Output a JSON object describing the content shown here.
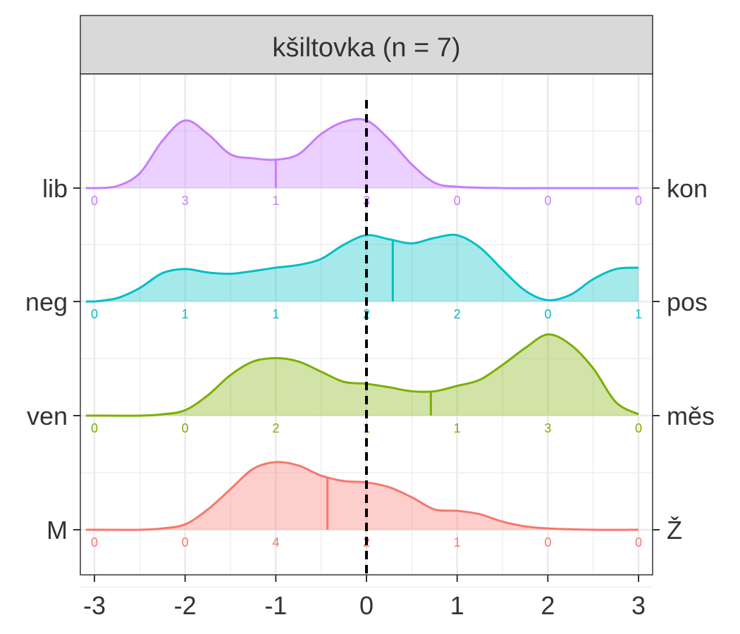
{
  "chart_data": {
    "type": "ridgeline-density",
    "facet_title": "kšiltovka (n = 7)",
    "xlim": [
      -3,
      3
    ],
    "x_ticks": [
      -3,
      -2,
      -1,
      0,
      1,
      2,
      3
    ],
    "x_tick_labels": [
      "-3",
      "-2",
      "-1",
      "0",
      "1",
      "2",
      "3"
    ],
    "reference_line_x": 0,
    "grid": true,
    "series": [
      {
        "left_label": "lib",
        "right_label": "kon",
        "color": "#C77CFF",
        "counts": [
          0,
          3,
          1,
          3,
          0,
          0,
          0
        ],
        "mean": -1.0,
        "density_points": [
          [
            -3,
            0
          ],
          [
            -2.75,
            0.03
          ],
          [
            -2.5,
            0.22
          ],
          [
            -2.25,
            0.7
          ],
          [
            -2,
            1.0
          ],
          [
            -1.75,
            0.8
          ],
          [
            -1.5,
            0.5
          ],
          [
            -1.25,
            0.44
          ],
          [
            -1,
            0.42
          ],
          [
            -0.75,
            0.5
          ],
          [
            -0.5,
            0.8
          ],
          [
            -0.25,
            0.98
          ],
          [
            0,
            1.0
          ],
          [
            0.25,
            0.72
          ],
          [
            0.5,
            0.35
          ],
          [
            0.75,
            0.08
          ],
          [
            1,
            0.02
          ],
          [
            1.5,
            0
          ],
          [
            2,
            0
          ],
          [
            2.5,
            0
          ],
          [
            3,
            0
          ]
        ]
      },
      {
        "left_label": "neg",
        "right_label": "pos",
        "color": "#00BFC4",
        "counts": [
          0,
          1,
          1,
          2,
          2,
          0,
          1
        ],
        "mean": 0.29,
        "density_points": [
          [
            -3,
            0
          ],
          [
            -2.75,
            0.05
          ],
          [
            -2.5,
            0.2
          ],
          [
            -2.25,
            0.42
          ],
          [
            -2,
            0.48
          ],
          [
            -1.75,
            0.43
          ],
          [
            -1.5,
            0.41
          ],
          [
            -1.25,
            0.45
          ],
          [
            -1,
            0.5
          ],
          [
            -0.75,
            0.54
          ],
          [
            -0.5,
            0.63
          ],
          [
            -0.25,
            0.84
          ],
          [
            0,
            0.98
          ],
          [
            0.25,
            0.92
          ],
          [
            0.5,
            0.86
          ],
          [
            0.75,
            0.94
          ],
          [
            1,
            0.98
          ],
          [
            1.25,
            0.8
          ],
          [
            1.5,
            0.47
          ],
          [
            1.75,
            0.16
          ],
          [
            2,
            0.02
          ],
          [
            2.25,
            0.1
          ],
          [
            2.5,
            0.33
          ],
          [
            2.75,
            0.48
          ],
          [
            3,
            0.5
          ]
        ]
      },
      {
        "left_label": "ven",
        "right_label": "měs",
        "color": "#7CAE00",
        "counts": [
          0,
          0,
          2,
          1,
          1,
          3,
          0
        ],
        "mean": 0.71,
        "density_points": [
          [
            -3,
            0
          ],
          [
            -2.5,
            0
          ],
          [
            -2.25,
            0.02
          ],
          [
            -2,
            0.08
          ],
          [
            -1.75,
            0.3
          ],
          [
            -1.5,
            0.6
          ],
          [
            -1.25,
            0.8
          ],
          [
            -1,
            0.85
          ],
          [
            -0.75,
            0.8
          ],
          [
            -0.5,
            0.65
          ],
          [
            -0.25,
            0.5
          ],
          [
            0,
            0.47
          ],
          [
            0.25,
            0.42
          ],
          [
            0.5,
            0.36
          ],
          [
            0.75,
            0.36
          ],
          [
            1,
            0.44
          ],
          [
            1.25,
            0.53
          ],
          [
            1.5,
            0.75
          ],
          [
            1.75,
            1.0
          ],
          [
            2,
            1.2
          ],
          [
            2.25,
            1.05
          ],
          [
            2.5,
            0.7
          ],
          [
            2.75,
            0.2
          ],
          [
            3,
            0.02
          ]
        ]
      },
      {
        "left_label": "M",
        "right_label": "Ž",
        "color": "#F8766D",
        "counts": [
          0,
          0,
          4,
          2,
          1,
          0,
          0
        ],
        "mean": -0.43,
        "density_points": [
          [
            -3,
            0
          ],
          [
            -2.5,
            0
          ],
          [
            -2.25,
            0.02
          ],
          [
            -2,
            0.08
          ],
          [
            -1.75,
            0.3
          ],
          [
            -1.5,
            0.6
          ],
          [
            -1.25,
            0.9
          ],
          [
            -1,
            1.0
          ],
          [
            -0.75,
            0.95
          ],
          [
            -0.5,
            0.8
          ],
          [
            -0.25,
            0.72
          ],
          [
            0,
            0.7
          ],
          [
            0.25,
            0.63
          ],
          [
            0.5,
            0.48
          ],
          [
            0.75,
            0.3
          ],
          [
            1,
            0.28
          ],
          [
            1.25,
            0.23
          ],
          [
            1.5,
            0.12
          ],
          [
            1.75,
            0.05
          ],
          [
            2,
            0.02
          ],
          [
            2.5,
            0
          ],
          [
            3,
            0
          ]
        ]
      }
    ]
  }
}
